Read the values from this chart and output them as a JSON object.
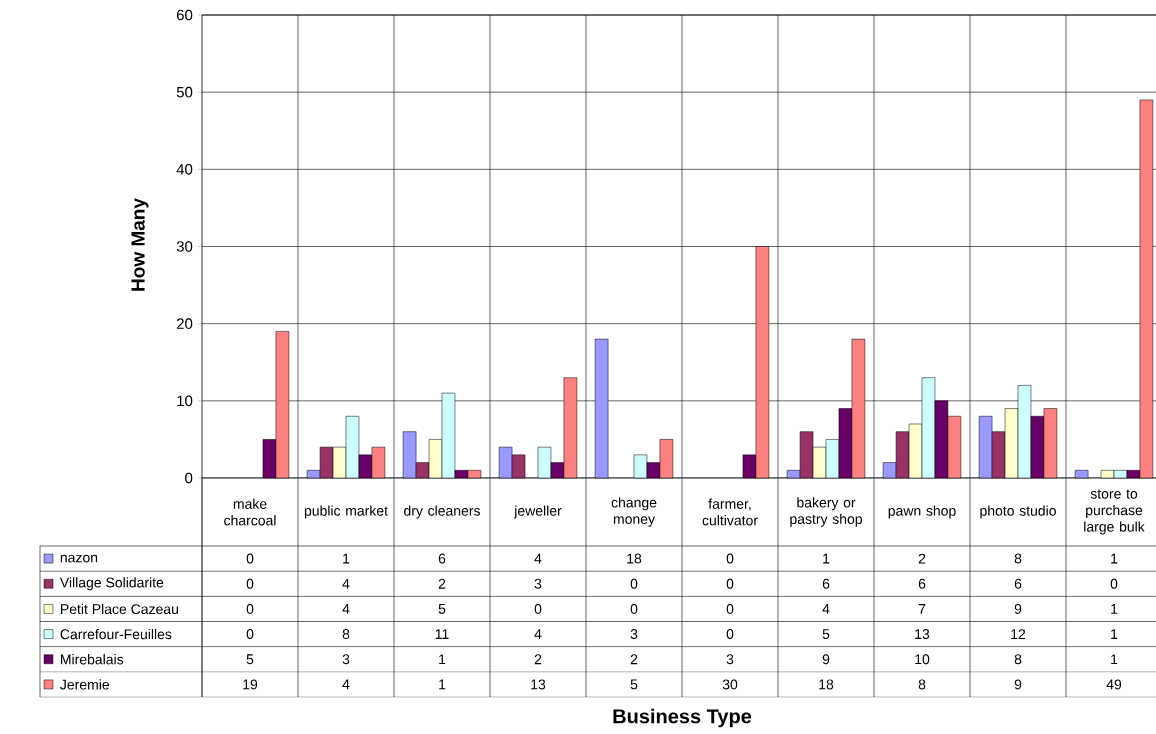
{
  "chart_data": {
    "type": "bar",
    "annotations": [
      "Business Type"
    ],
    "ylabel": "How Many",
    "categories": [
      "make charcoal",
      "public market",
      "dry cleaners",
      "jeweller",
      "change money",
      "farmer, cultivator",
      "bakery or pastry shop",
      "pawn shop",
      "photo studio",
      "store to purchase large bulk"
    ],
    "series": [
      {
        "name": "nazon",
        "color": "#9999ff",
        "values": [
          0,
          1,
          6,
          4,
          18,
          0,
          1,
          2,
          8,
          1
        ]
      },
      {
        "name": "Village Solidarite",
        "color": "#993366",
        "values": [
          0,
          4,
          2,
          3,
          0,
          0,
          6,
          6,
          6,
          0
        ]
      },
      {
        "name": "Petit Place Cazeau",
        "color": "#ffffcc",
        "values": [
          0,
          4,
          5,
          0,
          0,
          0,
          4,
          7,
          9,
          1
        ]
      },
      {
        "name": "Carrefour-Feuilles",
        "color": "#ccffff",
        "values": [
          0,
          8,
          11,
          4,
          3,
          0,
          5,
          13,
          12,
          1
        ]
      },
      {
        "name": "Mirebalais",
        "color": "#660066",
        "values": [
          5,
          3,
          1,
          2,
          2,
          3,
          9,
          10,
          8,
          1
        ]
      },
      {
        "name": "Jeremie",
        "color": "#ff8080",
        "values": [
          19,
          4,
          1,
          13,
          5,
          30,
          18,
          8,
          9,
          49
        ]
      }
    ],
    "ylim": [
      0,
      60
    ],
    "yticks": [
      0,
      10,
      20,
      30,
      40,
      50,
      60
    ],
    "grid": "y",
    "legend": "bottom left",
    "data_labels": true
  }
}
